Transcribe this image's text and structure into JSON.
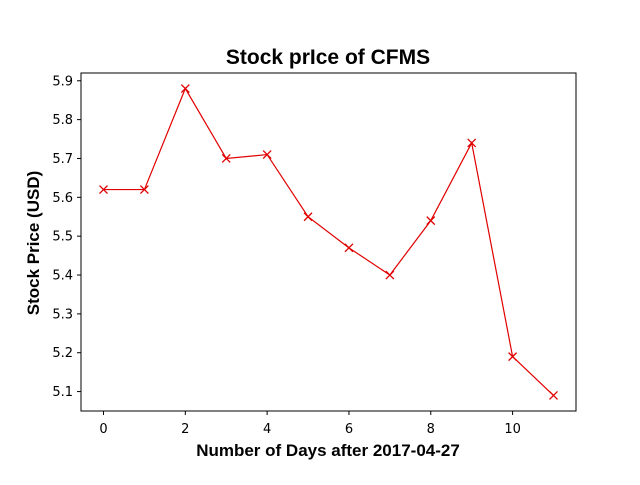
{
  "chart_data": {
    "type": "line",
    "title": "Stock prIce of CFMS",
    "xlabel": "Number of Days after 2017-04-27",
    "ylabel": "Stock Price (USD)",
    "xlim": [
      -0.55,
      11.55
    ],
    "ylim": [
      5.05,
      5.92
    ],
    "xticks": [
      0,
      2,
      4,
      6,
      8,
      10
    ],
    "xtick_labels": [
      "0",
      "2",
      "4",
      "6",
      "8",
      "10"
    ],
    "yticks": [
      5.1,
      5.2,
      5.3,
      5.4,
      5.5,
      5.6,
      5.7,
      5.8,
      5.9
    ],
    "ytick_labels": [
      "5.1",
      "5.2",
      "5.3",
      "5.4",
      "5.5",
      "5.6",
      "5.7",
      "5.8",
      "5.9"
    ],
    "grid": false,
    "legend": "none",
    "series": [
      {
        "color": "#e00000",
        "marker": "x",
        "x": [
          0,
          1,
          2,
          3,
          4,
          5,
          6,
          7,
          8,
          9,
          10,
          11
        ],
        "y": [
          5.62,
          5.62,
          5.88,
          5.7,
          5.71,
          5.55,
          5.47,
          5.4,
          5.54,
          5.74,
          5.19,
          5.09
        ]
      }
    ]
  }
}
